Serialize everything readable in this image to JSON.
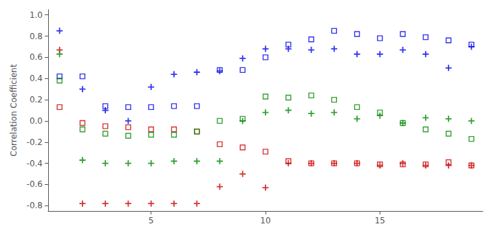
{
  "chart_data": {
    "type": "scatter",
    "ylabel": "Correlation Coefficient",
    "x": [
      1,
      2,
      3,
      4,
      5,
      6,
      7,
      8,
      9,
      10,
      11,
      12,
      13,
      14,
      15,
      16,
      17,
      18,
      19
    ],
    "series": [
      {
        "color": "#0000EE",
        "marker": "plus",
        "values": [
          0.85,
          0.3,
          0.1,
          0.0,
          0.32,
          0.44,
          0.46,
          0.47,
          0.59,
          0.68,
          0.68,
          0.67,
          0.68,
          0.63,
          0.63,
          0.67,
          0.63,
          0.5,
          0.7
        ]
      },
      {
        "color": "#0000EE",
        "marker": "square",
        "values": [
          0.42,
          0.42,
          0.14,
          0.13,
          0.13,
          0.14,
          0.14,
          0.48,
          0.48,
          0.6,
          0.72,
          0.77,
          0.85,
          0.82,
          0.78,
          0.82,
          0.79,
          0.76,
          0.72
        ]
      },
      {
        "color": "#CC0000",
        "marker": "plus",
        "values": [
          0.67,
          -0.78,
          -0.78,
          -0.78,
          -0.78,
          -0.78,
          -0.78,
          -0.62,
          -0.5,
          -0.63,
          -0.4,
          -0.4,
          -0.4,
          -0.4,
          -0.42,
          -0.4,
          -0.42,
          -0.42,
          -0.42
        ]
      },
      {
        "color": "#CC0000",
        "marker": "square",
        "values": [
          0.13,
          -0.02,
          -0.05,
          -0.06,
          -0.08,
          -0.08,
          -0.1,
          -0.22,
          -0.25,
          -0.29,
          -0.38,
          -0.4,
          -0.4,
          -0.4,
          -0.41,
          -0.41,
          -0.41,
          -0.39,
          -0.42
        ]
      },
      {
        "color": "#008800",
        "marker": "plus",
        "values": [
          0.63,
          -0.37,
          -0.4,
          -0.4,
          -0.4,
          -0.38,
          -0.38,
          -0.38,
          0.0,
          0.08,
          0.1,
          0.07,
          0.08,
          0.02,
          0.05,
          -0.02,
          0.03,
          0.02,
          0.0
        ]
      },
      {
        "color": "#008800",
        "marker": "square",
        "values": [
          0.38,
          -0.08,
          -0.12,
          -0.14,
          -0.13,
          -0.13,
          -0.1,
          0.0,
          0.02,
          0.23,
          0.22,
          0.24,
          0.2,
          0.13,
          0.08,
          -0.02,
          -0.08,
          -0.12,
          -0.17
        ]
      }
    ],
    "xlim": [
      0.5,
      19.5
    ],
    "ylim": [
      -0.85,
      1.05
    ],
    "xticks": [
      5,
      10,
      15
    ],
    "yticks": [
      -0.8,
      -0.6,
      -0.4,
      -0.2,
      {
        "value": 0.0,
        "label": "0.0"
      },
      0.2,
      0.4,
      0.6,
      0.8,
      {
        "value": 1.0,
        "label": "1.0"
      }
    ],
    "grid": false
  }
}
